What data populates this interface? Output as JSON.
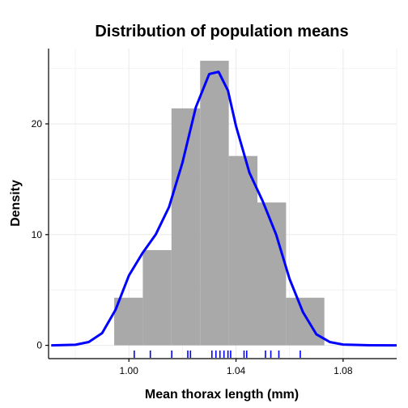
{
  "chart_data": {
    "type": "histogram",
    "title": "Distribution of population means",
    "xlabel": "Mean thorax length (mm)",
    "ylabel": "Density",
    "xlim": [
      0.97,
      1.1
    ],
    "ylim": [
      -1.2,
      26.8
    ],
    "x_ticks": [
      1.0,
      1.04,
      1.08
    ],
    "x_tick_labels": [
      "1.00",
      "1.04",
      "1.08"
    ],
    "y_ticks": [
      0,
      10,
      20
    ],
    "y_tick_labels": [
      "0",
      "10",
      "20"
    ],
    "grid": true,
    "bars": [
      {
        "x0": 0.9945,
        "x1": 1.0052,
        "density": 4.3
      },
      {
        "x0": 1.0052,
        "x1": 1.0159,
        "density": 8.6
      },
      {
        "x0": 1.0159,
        "x1": 1.0266,
        "density": 21.4
      },
      {
        "x0": 1.0266,
        "x1": 1.0373,
        "density": 25.7
      },
      {
        "x0": 1.0373,
        "x1": 1.048,
        "density": 17.1
      },
      {
        "x0": 1.048,
        "x1": 1.0587,
        "density": 12.9
      },
      {
        "x0": 1.0587,
        "x1": 1.073,
        "density": 4.3
      }
    ],
    "density_curve": {
      "x": [
        0.971,
        0.98,
        0.985,
        0.99,
        0.995,
        1.0,
        1.005,
        1.01,
        1.015,
        1.02,
        1.025,
        1.03,
        1.0335,
        1.037,
        1.04,
        1.045,
        1.05,
        1.055,
        1.06,
        1.065,
        1.07,
        1.075,
        1.08,
        1.09,
        1.1
      ],
      "y": [
        0.0,
        0.05,
        0.3,
        1.1,
        3.2,
        6.3,
        8.3,
        10.0,
        12.5,
        16.5,
        21.5,
        24.5,
        24.7,
        23.0,
        19.8,
        15.6,
        13.0,
        10.0,
        6.0,
        3.0,
        1.0,
        0.3,
        0.07,
        0.01,
        0.0
      ],
      "color": "#0000ff"
    },
    "rug": [
      1.002,
      1.008,
      1.016,
      1.022,
      1.023,
      1.031,
      1.0325,
      1.034,
      1.0355,
      1.037,
      1.038,
      1.043,
      1.044,
      1.051,
      1.053,
      1.056,
      1.064
    ],
    "colors": {
      "bar": "#a9a9a9",
      "curve": "#0000ff",
      "rug": "#0000ff",
      "grid": "#ebebeb",
      "axis": "#000000"
    }
  }
}
